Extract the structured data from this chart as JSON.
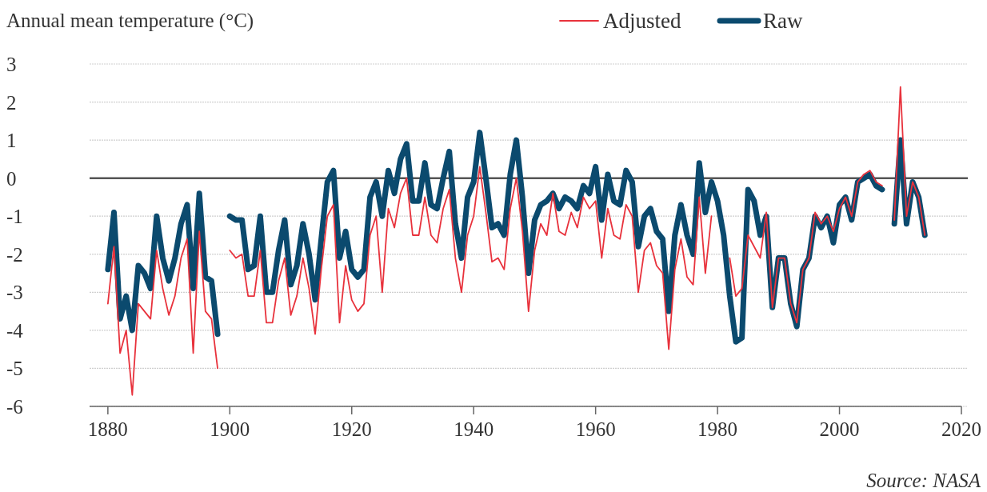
{
  "chart_data": {
    "type": "line",
    "ylabel": "Annual mean temperature (°C)",
    "annotations": [
      "Source: NASA"
    ],
    "x": [
      1880,
      1881,
      1882,
      1883,
      1884,
      1885,
      1886,
      1887,
      1888,
      1889,
      1890,
      1891,
      1892,
      1893,
      1894,
      1895,
      1896,
      1897,
      1898,
      1899,
      1900,
      1901,
      1902,
      1903,
      1904,
      1905,
      1906,
      1907,
      1908,
      1909,
      1910,
      1911,
      1912,
      1913,
      1914,
      1915,
      1916,
      1917,
      1918,
      1919,
      1920,
      1921,
      1922,
      1923,
      1924,
      1925,
      1926,
      1927,
      1928,
      1929,
      1930,
      1931,
      1932,
      1933,
      1934,
      1935,
      1936,
      1937,
      1938,
      1939,
      1940,
      1941,
      1942,
      1943,
      1944,
      1945,
      1946,
      1947,
      1948,
      1949,
      1950,
      1951,
      1952,
      1953,
      1954,
      1955,
      1956,
      1957,
      1958,
      1959,
      1960,
      1961,
      1962,
      1963,
      1964,
      1965,
      1966,
      1967,
      1968,
      1969,
      1970,
      1971,
      1972,
      1973,
      1974,
      1975,
      1976,
      1977,
      1978,
      1979,
      1980,
      1981,
      1982,
      1983,
      1984,
      1985,
      1986,
      1987,
      1988,
      1989,
      1990,
      1991,
      1992,
      1993,
      1994,
      1995,
      1996,
      1997,
      1998,
      1999,
      2000,
      2001,
      2002,
      2003,
      2004,
      2005,
      2006,
      2007,
      2008,
      2009,
      2010,
      2011,
      2012,
      2013,
      2014
    ],
    "series": [
      {
        "name": "Adjusted",
        "color": "#e8323c",
        "values": [
          -3.3,
          -1.8,
          -4.6,
          -4.0,
          -5.7,
          -3.3,
          -3.5,
          -3.7,
          -1.9,
          -2.9,
          -3.6,
          -3.1,
          -2.1,
          -1.6,
          -4.6,
          -1.4,
          -3.5,
          -3.7,
          -5.0,
          null,
          -1.9,
          -2.1,
          -2.0,
          -3.1,
          -3.1,
          -1.9,
          -3.8,
          -3.8,
          -2.7,
          -2.1,
          -3.6,
          -3.1,
          -2.1,
          -2.9,
          -4.1,
          -2.4,
          -1.0,
          -0.7,
          -3.8,
          -2.3,
          -3.2,
          -3.5,
          -3.3,
          -1.5,
          -1.0,
          -3.0,
          -0.8,
          -1.3,
          -0.4,
          0.0,
          -1.5,
          -1.5,
          -0.5,
          -1.5,
          -1.7,
          -0.8,
          -0.3,
          -2.1,
          -3.0,
          -1.5,
          -1.0,
          0.3,
          -0.9,
          -2.2,
          -2.1,
          -2.4,
          -0.8,
          0.0,
          -1.4,
          -3.5,
          -1.9,
          -1.2,
          -1.5,
          -0.4,
          -1.4,
          -1.5,
          -0.9,
          -1.3,
          -0.5,
          -0.8,
          -0.6,
          -2.1,
          -0.8,
          -1.5,
          -1.6,
          -0.7,
          -1.0,
          -3.0,
          -1.9,
          -1.7,
          -2.3,
          -2.5,
          -4.5,
          -2.4,
          -1.6,
          -2.6,
          -2.8,
          -0.5,
          -2.5,
          -1.0,
          null,
          null,
          -2.1,
          -3.1,
          -2.9,
          -1.5,
          -1.8,
          -2.1,
          -0.9,
          -3.4,
          -2.1,
          -2.1,
          -3.3,
          -3.8,
          -2.4,
          -2.1,
          -0.9,
          -1.2,
          -1.0,
          -1.4,
          -0.8,
          -0.5,
          -1.0,
          -0.1,
          0.1,
          0.2,
          -0.1,
          -0.2,
          null,
          -1.1,
          2.4,
          -1.0,
          -0.1,
          -0.5,
          -1.5
        ]
      },
      {
        "name": "Raw",
        "color": "#0b4a6e",
        "values": [
          -2.4,
          -0.9,
          -3.7,
          -3.1,
          -4.0,
          -2.3,
          -2.5,
          -2.9,
          -1.0,
          -2.1,
          -2.7,
          -2.1,
          -1.2,
          -0.7,
          -2.9,
          -0.4,
          -2.6,
          -2.7,
          -4.1,
          null,
          -1.0,
          -1.1,
          -1.1,
          -2.4,
          -2.3,
          -1.0,
          -3.0,
          -3.0,
          -1.9,
          -1.1,
          -2.8,
          -2.3,
          -1.2,
          -2.0,
          -3.2,
          -1.6,
          -0.1,
          0.2,
          -2.1,
          -1.4,
          -2.4,
          -2.6,
          -2.4,
          -0.5,
          -0.1,
          -1.0,
          0.2,
          -0.4,
          0.5,
          0.9,
          -0.6,
          -0.6,
          0.4,
          -0.7,
          -0.8,
          0.0,
          0.7,
          -1.2,
          -2.1,
          -0.5,
          -0.1,
          1.2,
          0.0,
          -1.3,
          -1.2,
          -1.5,
          0.1,
          1.0,
          -0.5,
          -2.5,
          -1.1,
          -0.7,
          -0.6,
          -0.4,
          -0.8,
          -0.5,
          -0.6,
          -0.8,
          -0.2,
          -0.4,
          0.3,
          -1.1,
          0.1,
          -0.6,
          -0.7,
          0.2,
          -0.1,
          -1.8,
          -1.0,
          -0.8,
          -1.4,
          -1.6,
          -3.5,
          -1.5,
          -0.7,
          -1.5,
          -2.0,
          0.4,
          -0.9,
          -0.1,
          -0.6,
          -1.5,
          -3.1,
          -4.3,
          -4.2,
          -0.3,
          -0.6,
          -1.5,
          -1.0,
          -3.4,
          -2.1,
          -2.1,
          -3.3,
          -3.9,
          -2.4,
          -2.1,
          -1.0,
          -1.3,
          -1.0,
          -1.7,
          -0.7,
          -0.5,
          -1.1,
          -0.1,
          0.0,
          0.1,
          -0.2,
          -0.3,
          null,
          -1.2,
          1.0,
          -1.2,
          -0.1,
          -0.5,
          -1.5
        ]
      }
    ],
    "xlim": [
      1877,
      2020
    ],
    "xticks": [
      1880,
      1900,
      1920,
      1940,
      1960,
      1980,
      2000,
      2020
    ],
    "ylim": [
      -6,
      3
    ],
    "yticks": [
      -6,
      -5,
      -4,
      -3,
      -2,
      -1,
      0,
      1,
      2,
      3
    ],
    "ref_lines": [
      {
        "axis": "y",
        "value": 0,
        "color": "#555555"
      }
    ],
    "grid": "y",
    "legend": "top right"
  }
}
